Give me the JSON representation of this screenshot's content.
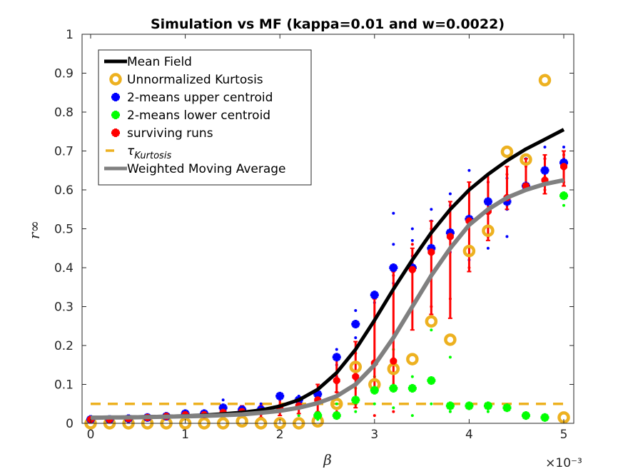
{
  "chart_data": {
    "type": "scatter",
    "title": "Simulation vs MF (kappa=0.01 and w=0.0022)",
    "xlabel": "β",
    "ylabel": "r∞",
    "x_exponent_label": "×10⁻³",
    "xlim": [
      0,
      5
    ],
    "ylim": [
      0,
      1
    ],
    "xticks": [
      "0",
      "1",
      "2",
      "3",
      "4",
      "5"
    ],
    "yticks": [
      "0",
      "0.1",
      "0.2",
      "0.3",
      "0.4",
      "0.5",
      "0.6",
      "0.7",
      "0.8",
      "0.9",
      "1"
    ],
    "legend_position": "top-left",
    "colors": {
      "mean_field": "#000000",
      "kurtosis": "#EDB120",
      "upper": "#0000FF",
      "lower": "#00FF00",
      "surviving": "#FF0000",
      "wma": "#808080"
    },
    "legend": [
      {
        "label": "Mean Field",
        "kind": "line-thick",
        "color": "#000000"
      },
      {
        "label": "Unnormalized Kurtosis",
        "kind": "circle",
        "color": "#EDB120"
      },
      {
        "label": "2-means upper centroid",
        "kind": "star",
        "color": "#0000FF"
      },
      {
        "label": "2-means lower centroid",
        "kind": "star",
        "color": "#00FF00"
      },
      {
        "label": "surviving runs",
        "kind": "star",
        "color": "#FF0000"
      },
      {
        "label": "τ",
        "sub": "Kurtosis",
        "kind": "dash",
        "color": "#EDB120"
      },
      {
        "label": "Weighted Moving Average",
        "kind": "line-thick",
        "color": "#808080"
      }
    ],
    "series": {
      "mean_field": {
        "x": [
          0,
          0.2,
          0.4,
          0.6,
          0.8,
          1.0,
          1.2,
          1.4,
          1.6,
          1.8,
          2.0,
          2.2,
          2.4,
          2.6,
          2.8,
          3.0,
          3.2,
          3.4,
          3.6,
          3.8,
          4.0,
          4.2,
          4.4,
          4.6,
          4.8,
          5.0
        ],
        "y": [
          0.015,
          0.015,
          0.016,
          0.017,
          0.018,
          0.019,
          0.021,
          0.024,
          0.028,
          0.034,
          0.044,
          0.06,
          0.087,
          0.13,
          0.19,
          0.265,
          0.345,
          0.42,
          0.49,
          0.55,
          0.6,
          0.64,
          0.675,
          0.705,
          0.73,
          0.755
        ]
      },
      "wma": {
        "x": [
          0,
          0.2,
          0.4,
          0.6,
          0.8,
          1.0,
          1.2,
          1.4,
          1.6,
          1.8,
          2.0,
          2.2,
          2.4,
          2.6,
          2.8,
          3.0,
          3.2,
          3.4,
          3.6,
          3.8,
          4.0,
          4.2,
          4.4,
          4.6,
          4.8,
          5.0
        ],
        "y": [
          0.014,
          0.015,
          0.015,
          0.016,
          0.017,
          0.018,
          0.019,
          0.021,
          0.023,
          0.027,
          0.032,
          0.04,
          0.052,
          0.07,
          0.1,
          0.15,
          0.22,
          0.3,
          0.38,
          0.45,
          0.51,
          0.55,
          0.58,
          0.6,
          0.615,
          0.625
        ]
      },
      "kurtosis_threshold": 0.05,
      "kurtosis": {
        "x": [
          0,
          0.2,
          0.4,
          0.6,
          0.8,
          1.0,
          1.2,
          1.4,
          1.6,
          1.8,
          2.0,
          2.2,
          2.4,
          2.6,
          2.8,
          3.0,
          3.2,
          3.4,
          3.6,
          3.8,
          4.0,
          4.2,
          4.4,
          4.6,
          4.8,
          5.0
        ],
        "y": [
          0.0,
          0.0,
          0.0,
          0.0,
          0.0,
          0.0,
          0.0,
          0.0,
          0.005,
          0.0,
          0.0,
          0.0,
          0.005,
          0.05,
          0.145,
          0.1,
          0.14,
          0.165,
          0.262,
          0.215,
          0.443,
          0.495,
          0.698,
          0.678,
          0.882,
          0.015
        ]
      },
      "upper": {
        "x": [
          0,
          0.2,
          0.4,
          0.6,
          0.8,
          1.0,
          1.2,
          1.4,
          1.6,
          1.8,
          2.0,
          2.2,
          2.4,
          2.6,
          2.8,
          3.0,
          3.2,
          3.4,
          3.6,
          3.8,
          4.0,
          4.2,
          4.4,
          4.6,
          4.8,
          5.0
        ],
        "y": [
          0.01,
          0.01,
          0.012,
          0.015,
          0.018,
          0.025,
          0.025,
          0.04,
          0.035,
          0.035,
          0.07,
          0.06,
          0.075,
          0.17,
          0.255,
          0.33,
          0.4,
          0.4,
          0.45,
          0.49,
          0.525,
          0.57,
          0.57,
          0.61,
          0.65,
          0.67
        ]
      },
      "lower": {
        "x": [
          2.4,
          2.6,
          2.8,
          3.0,
          3.2,
          3.4,
          3.6,
          3.8,
          4.0,
          4.2,
          4.4,
          4.6,
          4.8,
          5.0
        ],
        "y": [
          0.02,
          0.02,
          0.06,
          0.085,
          0.09,
          0.09,
          0.11,
          0.045,
          0.045,
          0.045,
          0.04,
          0.02,
          0.015,
          0.585
        ]
      },
      "surviving": {
        "x": [
          0,
          0.2,
          0.4,
          0.6,
          0.8,
          1.0,
          1.2,
          1.4,
          1.6,
          1.8,
          2.0,
          2.2,
          2.4,
          2.6,
          2.8,
          3.0,
          3.2,
          3.4,
          3.6,
          3.8,
          4.0,
          4.2,
          4.4,
          4.6,
          4.8,
          5.0
        ],
        "y": [
          0.01,
          0.01,
          0.012,
          0.015,
          0.018,
          0.022,
          0.022,
          0.028,
          0.03,
          0.03,
          0.04,
          0.045,
          0.06,
          0.11,
          0.12,
          0.155,
          0.16,
          0.395,
          0.44,
          0.48,
          0.52,
          0.545,
          0.58,
          0.61,
          0.625,
          0.66
        ],
        "err_low": [
          0.005,
          0.005,
          0.005,
          0.008,
          0.01,
          0.012,
          0.012,
          0.015,
          0.018,
          0.015,
          0.02,
          0.025,
          0.03,
          0.08,
          0.04,
          0.09,
          0.085,
          0.24,
          0.28,
          0.27,
          0.39,
          0.47,
          0.55,
          0.6,
          0.59,
          0.61
        ],
        "err_high": [
          0.015,
          0.015,
          0.018,
          0.022,
          0.025,
          0.03,
          0.03,
          0.04,
          0.045,
          0.045,
          0.075,
          0.065,
          0.1,
          0.17,
          0.21,
          0.32,
          0.39,
          0.45,
          0.52,
          0.57,
          0.62,
          0.64,
          0.66,
          0.68,
          0.69,
          0.7
        ]
      },
      "scatter_blue": [
        [
          2.6,
          0.19
        ],
        [
          2.6,
          0.15
        ],
        [
          2.6,
          0.12
        ],
        [
          2.8,
          0.29
        ],
        [
          2.8,
          0.26
        ],
        [
          2.8,
          0.22
        ],
        [
          3.0,
          0.33
        ],
        [
          3.0,
          0.31
        ],
        [
          3.2,
          0.54
        ],
        [
          3.2,
          0.46
        ],
        [
          3.2,
          0.39
        ],
        [
          3.2,
          0.36
        ],
        [
          3.4,
          0.5
        ],
        [
          3.4,
          0.47
        ],
        [
          3.4,
          0.43
        ],
        [
          3.6,
          0.55
        ],
        [
          3.6,
          0.52
        ],
        [
          3.6,
          0.38
        ],
        [
          3.8,
          0.59
        ],
        [
          3.8,
          0.56
        ],
        [
          3.8,
          0.44
        ],
        [
          4.0,
          0.65
        ],
        [
          4.0,
          0.6
        ],
        [
          4.0,
          0.42
        ],
        [
          4.2,
          0.64
        ],
        [
          4.2,
          0.62
        ],
        [
          4.2,
          0.45
        ],
        [
          4.4,
          0.63
        ],
        [
          4.4,
          0.55
        ],
        [
          4.4,
          0.48
        ],
        [
          4.6,
          0.68
        ],
        [
          4.6,
          0.6
        ],
        [
          4.8,
          0.71
        ],
        [
          4.8,
          0.68
        ],
        [
          5.0,
          0.71
        ],
        [
          5.0,
          0.68
        ],
        [
          1.4,
          0.06
        ],
        [
          1.8,
          0.05
        ],
        [
          2.2,
          0.07
        ],
        [
          2.0,
          0.06
        ]
      ],
      "scatter_green": [
        [
          2.6,
          0.05
        ],
        [
          2.8,
          0.09
        ],
        [
          2.8,
          0.03
        ],
        [
          3.0,
          0.12
        ],
        [
          3.0,
          0.05
        ],
        [
          3.2,
          0.19
        ],
        [
          3.2,
          0.1
        ],
        [
          3.2,
          0.04
        ],
        [
          3.4,
          0.12
        ],
        [
          3.4,
          0.02
        ],
        [
          3.6,
          0.24
        ],
        [
          3.6,
          0.05
        ],
        [
          3.8,
          0.17
        ],
        [
          3.8,
          0.03
        ],
        [
          4.0,
          0.04
        ],
        [
          4.2,
          0.03
        ],
        [
          4.4,
          0.04
        ],
        [
          4.6,
          0.02
        ],
        [
          4.8,
          0.01
        ],
        [
          5.0,
          0.56
        ],
        [
          2.4,
          0.01
        ],
        [
          2.2,
          0.02
        ]
      ],
      "scatter_red": [
        [
          2.6,
          0.08
        ],
        [
          2.6,
          0.03
        ],
        [
          2.8,
          0.18
        ],
        [
          2.8,
          0.05
        ],
        [
          3.0,
          0.26
        ],
        [
          3.0,
          0.02
        ],
        [
          3.2,
          0.38
        ],
        [
          3.2,
          0.03
        ],
        [
          3.4,
          0.46
        ],
        [
          3.4,
          0.3
        ],
        [
          3.6,
          0.5
        ],
        [
          3.6,
          0.3
        ],
        [
          3.8,
          0.55
        ],
        [
          3.8,
          0.32
        ],
        [
          4.0,
          0.6
        ],
        [
          4.0,
          0.4
        ],
        [
          4.2,
          0.62
        ],
        [
          4.2,
          0.48
        ],
        [
          4.4,
          0.64
        ],
        [
          4.4,
          0.56
        ],
        [
          4.6,
          0.66
        ],
        [
          4.6,
          0.6
        ],
        [
          4.8,
          0.68
        ],
        [
          4.8,
          0.6
        ],
        [
          5.0,
          0.69
        ],
        [
          5.0,
          0.62
        ]
      ]
    }
  }
}
